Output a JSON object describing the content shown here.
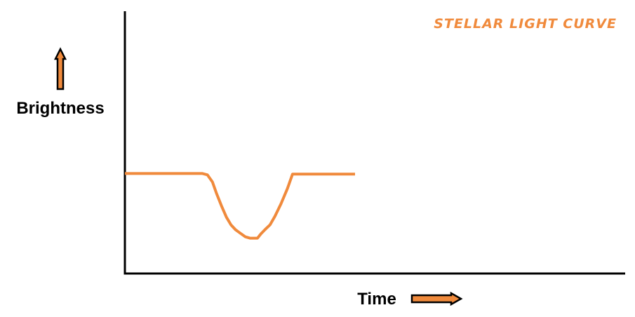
{
  "chart_data": {
    "type": "line",
    "title": "STELLAR LIGHT CURVE",
    "xlabel": "Time",
    "ylabel": "Brightness",
    "grid": false,
    "xlim": [
      0,
      100
    ],
    "ylim": [
      0,
      100
    ],
    "series": [
      {
        "color": "#f08a3c",
        "x": [
          0,
          15.5,
          16.5,
          17.5,
          18.3,
          19.3,
          20.3,
          21.2,
          22.1,
          23,
          24.1,
          25,
          26.5,
          27.2,
          28,
          29,
          30,
          31.2,
          32.5,
          33.5,
          36,
          40,
          46
        ],
        "y": [
          39.5,
          39.5,
          38.7,
          34.4,
          27.6,
          20.1,
          13.2,
          8.6,
          5.7,
          3.7,
          1.4,
          0.6,
          0.6,
          3.2,
          5.7,
          8.6,
          13.8,
          21.3,
          30.5,
          39.1,
          39.1,
          39.1,
          39.1
        ]
      }
    ]
  },
  "colors": {
    "accent": "#f08a3c",
    "axis": "#000000",
    "arrow_outline": "#000000"
  },
  "icons": {
    "y_arrow": "arrow-up-icon",
    "x_arrow": "arrow-right-icon"
  }
}
